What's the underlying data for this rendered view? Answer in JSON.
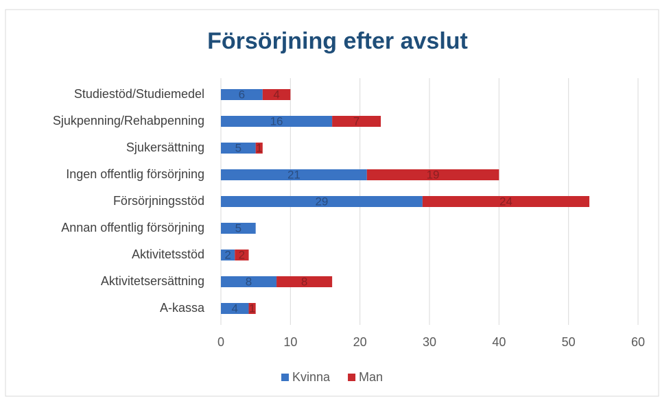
{
  "chart_data": {
    "type": "bar",
    "orientation": "horizontal",
    "stacked": true,
    "title": "Försörjning efter avslut",
    "categories": [
      "Studiestöd/Studiemedel",
      "Sjukpenning/Rehabpenning",
      "Sjukersättning",
      "Ingen offentlig försörjning",
      "Försörjningsstöd",
      "Annan offentlig försörjning",
      "Aktivitetsstöd",
      "Aktivitetsersättning",
      "A-kassa"
    ],
    "series": [
      {
        "name": "Kvinna",
        "color": "#3a74c4",
        "label_color": "#2a4d80",
        "values": [
          6,
          16,
          5,
          21,
          29,
          5,
          2,
          8,
          4
        ]
      },
      {
        "name": "Man",
        "color": "#c8292d",
        "label_color": "#8a1f22",
        "values": [
          4,
          7,
          1,
          19,
          24,
          null,
          2,
          8,
          1
        ]
      }
    ],
    "xlim": [
      0,
      60
    ],
    "xticks": [
      0,
      10,
      20,
      30,
      40,
      50,
      60
    ],
    "grid": true,
    "legend": "bottom"
  }
}
